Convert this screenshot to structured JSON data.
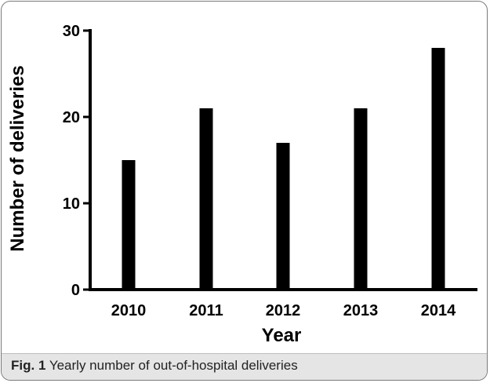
{
  "chart_data": {
    "type": "bar",
    "categories": [
      "2010",
      "2011",
      "2012",
      "2013",
      "2014"
    ],
    "values": [
      15,
      21,
      17,
      21,
      28
    ],
    "xlabel": "Year",
    "ylabel": "Number of deliveries",
    "ylim": [
      0,
      30
    ],
    "yticks": [
      0,
      10,
      20,
      30
    ],
    "grid": false,
    "bar_color": "#000000"
  },
  "caption": {
    "label": "Fig. 1",
    "text": "Yearly number of out-of-hospital deliveries"
  }
}
